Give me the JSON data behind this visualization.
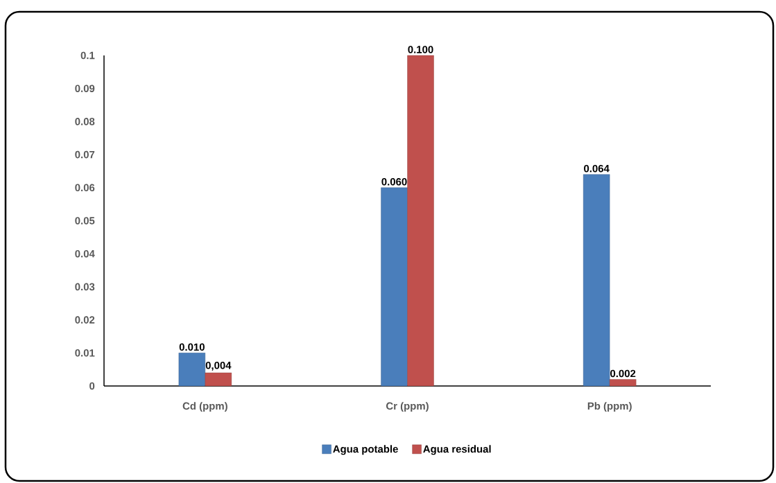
{
  "chart_data": {
    "type": "bar",
    "categories": [
      "Cd (ppm)",
      "Cr (ppm)",
      "Pb (ppm)"
    ],
    "series": [
      {
        "name": "Agua potable",
        "color": "#4a7ebb",
        "values": [
          0.01,
          0.06,
          0.064
        ],
        "value_labels": [
          "0.010",
          "0.060",
          "0.064"
        ]
      },
      {
        "name": "Agua residual",
        "color": "#c0504d",
        "values": [
          0.004,
          0.1,
          0.002
        ],
        "value_labels": [
          "0,004",
          "0.100",
          "0.002"
        ]
      }
    ],
    "ylim": [
      0,
      0.1
    ],
    "yticks": [
      0,
      0.01,
      0.02,
      0.03,
      0.04,
      0.05,
      0.06,
      0.07,
      0.08,
      0.09,
      0.1
    ],
    "grid": false,
    "legend": "bottom"
  }
}
